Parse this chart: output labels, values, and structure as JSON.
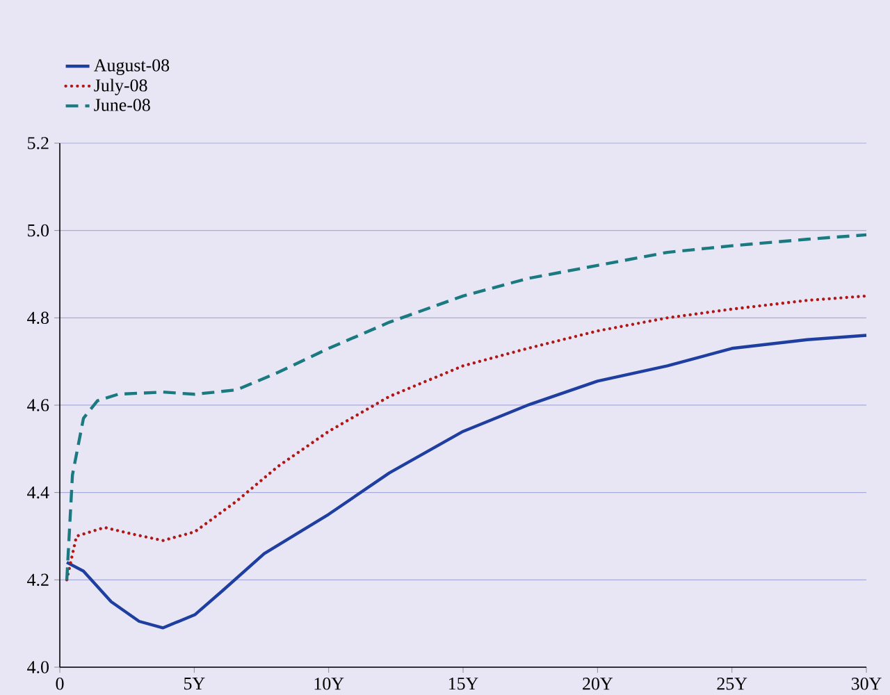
{
  "chart_data": {
    "type": "line",
    "legend": "top left",
    "grid": "y",
    "xlim": [
      0,
      30
    ],
    "ylim": [
      4.0,
      5.2
    ],
    "xticks": [
      0,
      {
        "value": 5,
        "label": "5Y"
      },
      {
        "value": 10,
        "label": "10Y"
      },
      {
        "value": 15,
        "label": "15Y"
      },
      {
        "value": 20,
        "label": "20Y"
      },
      {
        "value": 25,
        "label": "25Y"
      },
      {
        "value": 30,
        "label": "30Y"
      }
    ],
    "yticks": [
      {
        "value": 4.0,
        "label": "4.0"
      },
      {
        "value": 4.2,
        "label": "4.2"
      },
      {
        "value": 4.4,
        "label": "4.4"
      },
      {
        "value": 4.6,
        "label": "4.6"
      },
      {
        "value": 4.8,
        "label": "4.8"
      },
      {
        "value": 5.0,
        "label": "5.0"
      },
      {
        "value": 5.2,
        "label": "5.2"
      }
    ],
    "series": [
      {
        "name": "August-08",
        "color": "#1f3fa0",
        "line_style": "solid",
        "x": [
          0.26,
          0.88,
          1.91,
          2.95,
          3.83,
          5.02,
          6.05,
          7.6,
          10,
          12.26,
          15,
          17.4,
          20,
          22.6,
          25,
          27.8,
          30
        ],
        "values": [
          4.24,
          4.22,
          4.15,
          4.105,
          4.09,
          4.12,
          4.175,
          4.26,
          4.35,
          4.445,
          4.54,
          4.6,
          4.655,
          4.69,
          4.73,
          4.75,
          4.76
        ]
      },
      {
        "name": "July-08",
        "color": "#b01818",
        "line_style": "dotted",
        "x": [
          0.26,
          0.62,
          1.66,
          2.69,
          3.83,
          5.02,
          6.57,
          8.12,
          10,
          12.26,
          15,
          17.4,
          20,
          22.6,
          25,
          27.8,
          30
        ],
        "values": [
          4.2,
          4.3,
          4.32,
          4.305,
          4.29,
          4.31,
          4.38,
          4.46,
          4.54,
          4.62,
          4.69,
          4.73,
          4.77,
          4.8,
          4.82,
          4.84,
          4.85
        ]
      },
      {
        "name": "June-08",
        "color": "#1a7a80",
        "line_style": "dashed",
        "x": [
          0.26,
          0.47,
          0.88,
          1.4,
          2.17,
          3.83,
          5.02,
          6.57,
          8.12,
          10,
          12.26,
          15,
          17.4,
          20,
          22.6,
          25,
          27.8,
          30
        ],
        "values": [
          4.2,
          4.44,
          4.57,
          4.61,
          4.625,
          4.63,
          4.625,
          4.635,
          4.675,
          4.73,
          4.79,
          4.85,
          4.89,
          4.92,
          4.95,
          4.965,
          4.98,
          4.99
        ]
      }
    ]
  }
}
